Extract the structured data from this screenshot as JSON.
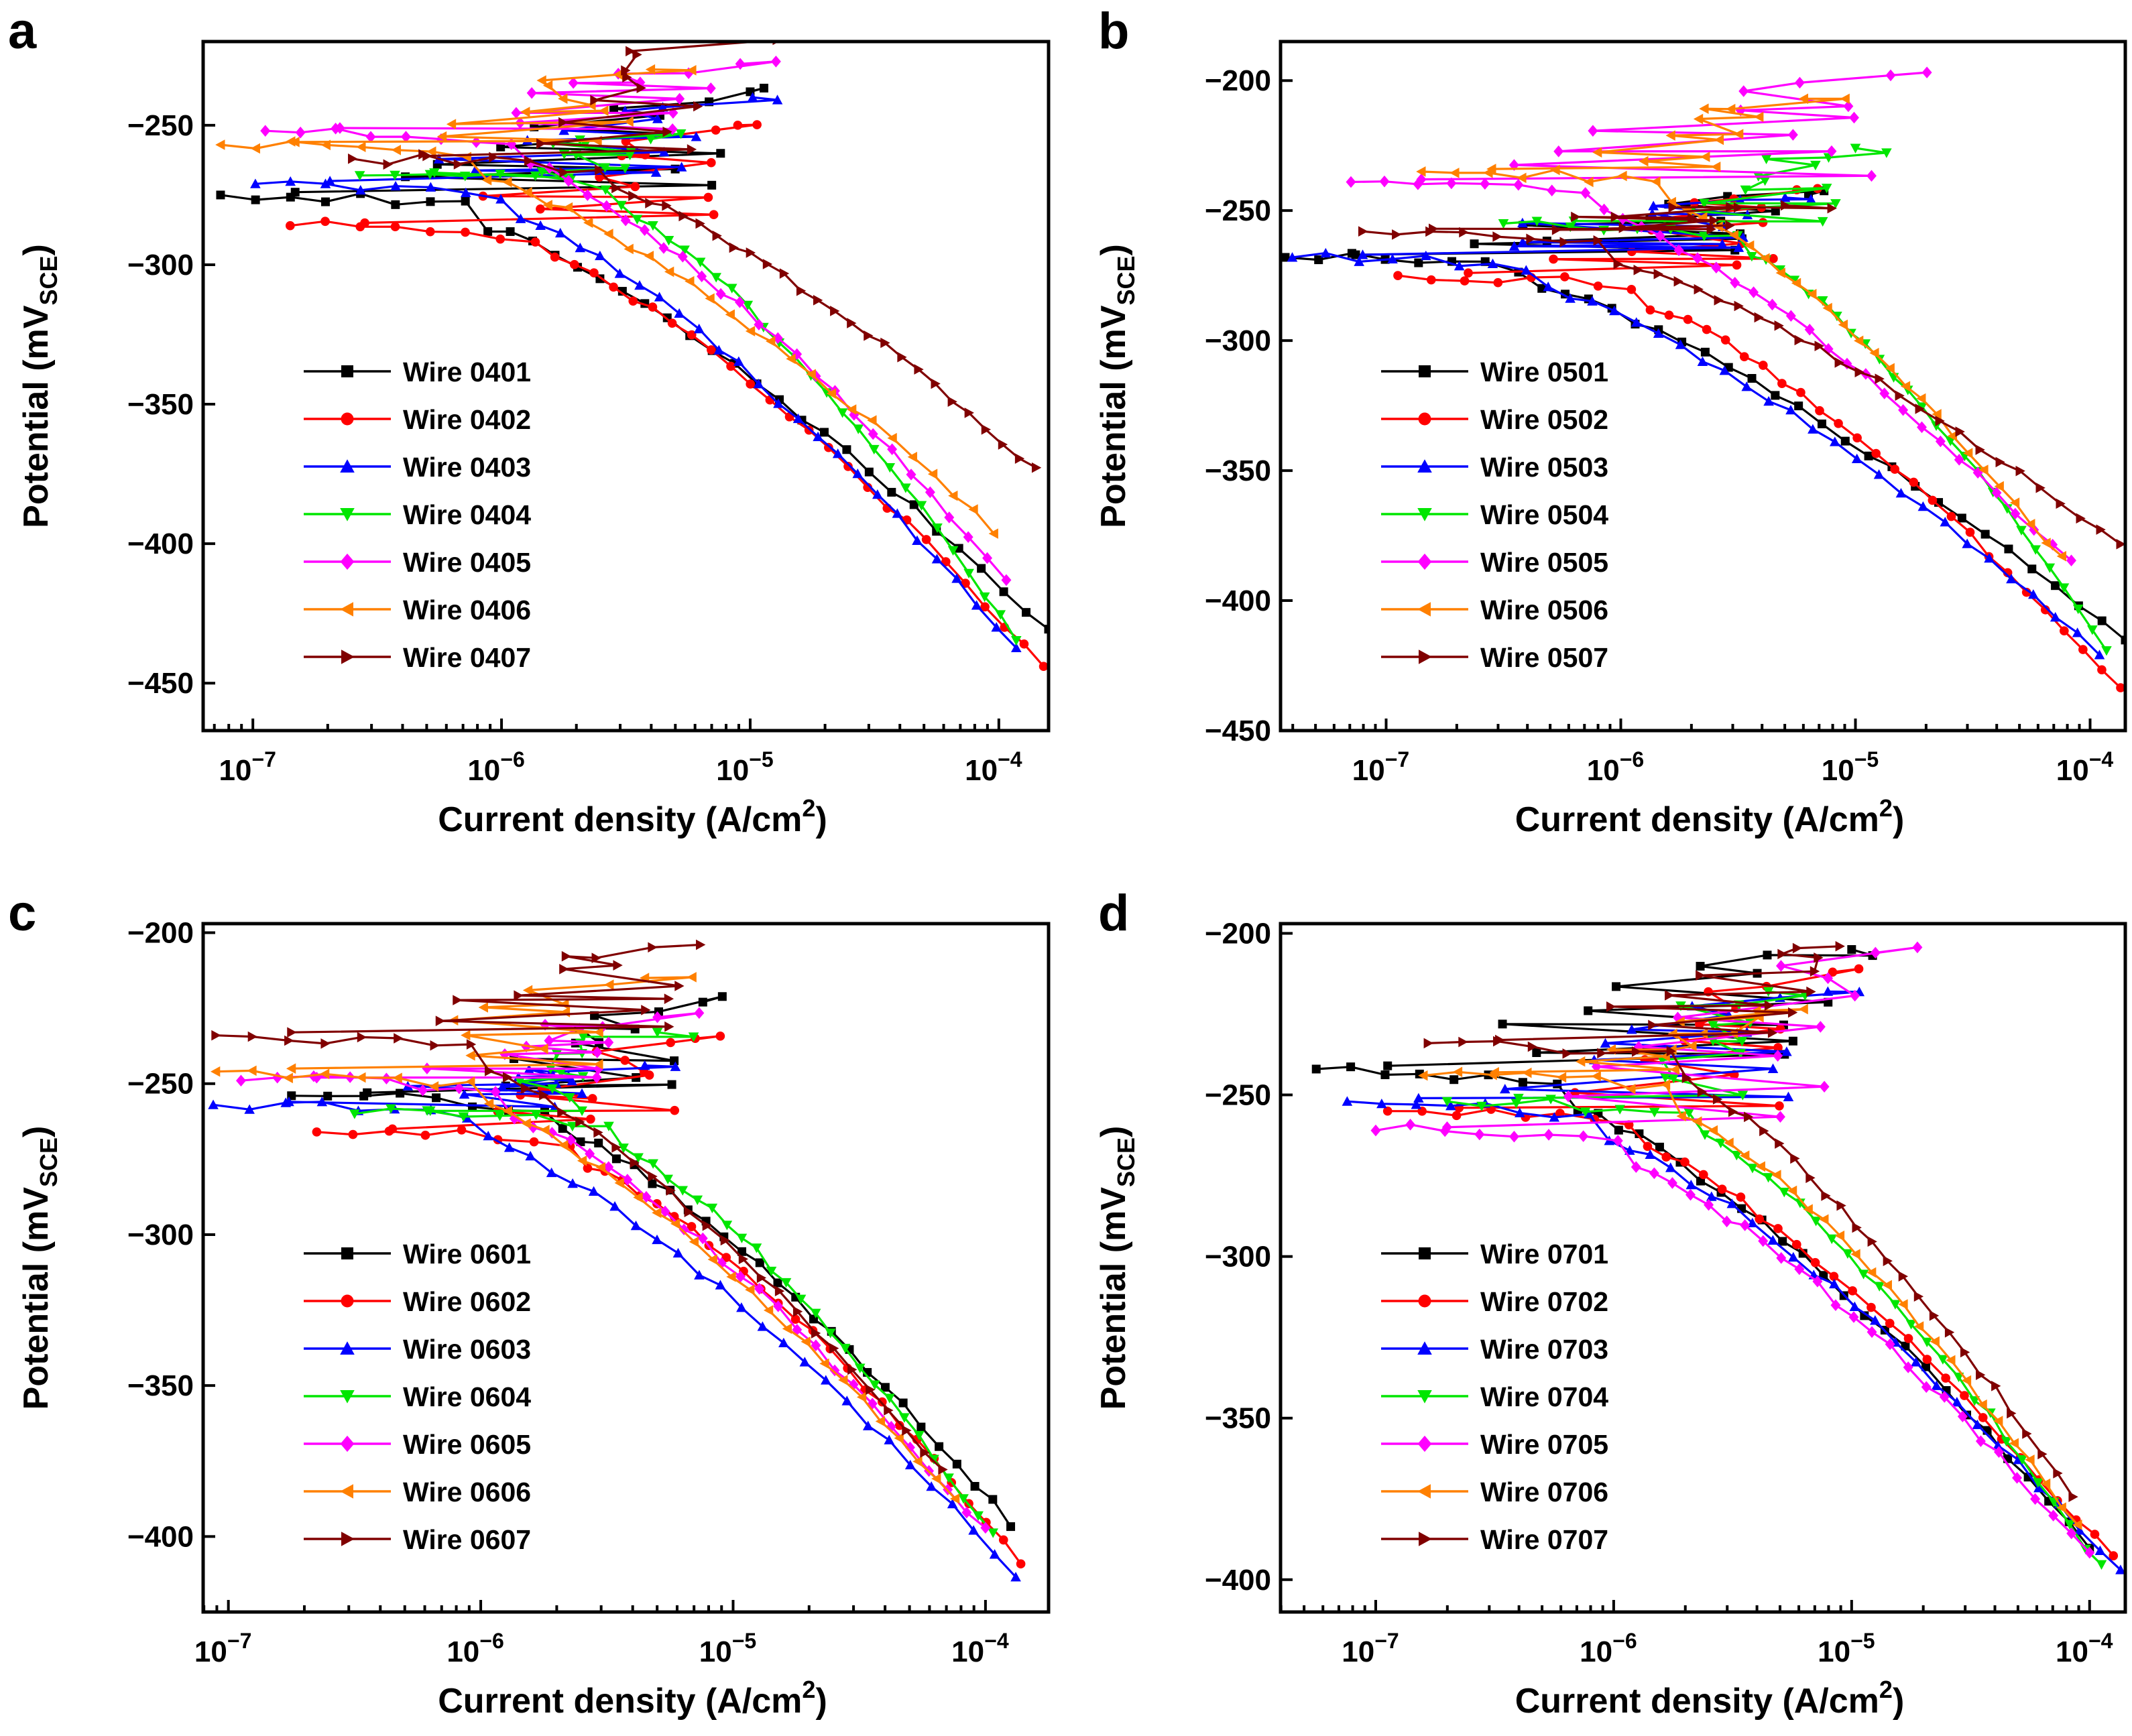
{
  "colors": [
    "#000000",
    "#ff0000",
    "#0000ff",
    "#00e600",
    "#ff00ff",
    "#ff8000",
    "#800000"
  ],
  "markers": [
    "square",
    "circle",
    "triangle-up",
    "triangle-down",
    "diamond",
    "triangle-left",
    "triangle-right"
  ],
  "chart_data": [
    {
      "type": "line",
      "panel": "a",
      "xlabel_main": "Current density (A/cm",
      "xlabel_sup": "2",
      "xlabel_end": ")",
      "ylabel_main": "Potential (mV",
      "ylabel_sub": "SCE",
      "ylabel_end": ")",
      "x_scale": "log",
      "xlim_exp": [
        -7.2,
        -3.8
      ],
      "ylim": [
        -467,
        -220
      ],
      "y_ticks": [
        -250,
        -300,
        -350,
        -400,
        -450
      ],
      "x_ticks": [
        {
          "base": "10",
          "exp": "-7",
          "v": -7
        },
        {
          "base": "10",
          "exp": "-6",
          "v": -6
        },
        {
          "base": "10",
          "exp": "-5",
          "v": -5
        },
        {
          "base": "10",
          "exp": "-4",
          "v": -4
        }
      ],
      "series": [
        {
          "name": "Wire 0401",
          "ecorr": -275,
          "lo": -7.13,
          "top": -238,
          "ttop": -5.0,
          "bot": -431,
          "tbot": -3.8
        },
        {
          "name": "Wire 0402",
          "ecorr": -286,
          "lo": -6.85,
          "top": -250,
          "ttop": -5.05,
          "bot": -444,
          "tbot": -3.82
        },
        {
          "name": "Wire 0403",
          "ecorr": -271,
          "lo": -6.99,
          "top": -240,
          "ttop": -4.99,
          "bot": -437,
          "tbot": -3.93
        },
        {
          "name": "Wire 0404",
          "ecorr": -268,
          "lo": -6.57,
          "top": -255,
          "ttop": -5.4,
          "bot": -434,
          "tbot": -3.93
        },
        {
          "name": "Wire 0405",
          "ecorr": -252,
          "lo": -6.95,
          "top": -228,
          "ttop": -5.04,
          "bot": -412,
          "tbot": -3.97
        },
        {
          "name": "Wire 0406",
          "ecorr": -257,
          "lo": -7.13,
          "top": -230,
          "ttop": -5.4,
          "bot": -395,
          "tbot": -4.02
        },
        {
          "name": "Wire 0407",
          "ecorr": -262,
          "lo": -6.6,
          "top": -218,
          "ttop": -5.08,
          "bot": -374,
          "tbot": -3.85
        }
      ]
    },
    {
      "type": "line",
      "panel": "b",
      "xlabel_main": "Current density (A/cm",
      "xlabel_sup": "2",
      "xlabel_end": ")",
      "ylabel_main": "Potential (mV",
      "ylabel_sub": "SCE",
      "ylabel_end": ")",
      "x_scale": "log",
      "xlim_exp": [
        -7.45,
        -3.85
      ],
      "ylim": [
        -450,
        -185
      ],
      "y_ticks": [
        -200,
        -250,
        -300,
        -350,
        -400,
        -450
      ],
      "x_ticks": [
        {
          "base": "10",
          "exp": "-7",
          "v": -7
        },
        {
          "base": "10",
          "exp": "-6",
          "v": -6
        },
        {
          "base": "10",
          "exp": "-5",
          "v": -5
        },
        {
          "base": "10",
          "exp": "-4",
          "v": -4
        }
      ],
      "series": [
        {
          "name": "Wire 0501",
          "ecorr": -268,
          "lo": -7.43,
          "top": -244,
          "ttop": -5.2,
          "bot": -415,
          "tbot": -3.85
        },
        {
          "name": "Wire 0502",
          "ecorr": -275,
          "lo": -6.95,
          "top": -242,
          "ttop": -5.25,
          "bot": -433,
          "tbot": -3.87
        },
        {
          "name": "Wire 0503",
          "ecorr": -268,
          "lo": -7.4,
          "top": -245,
          "ttop": -5.3,
          "bot": -420,
          "tbot": -3.96
        },
        {
          "name": "Wire 0504",
          "ecorr": -255,
          "lo": -6.5,
          "top": -226,
          "ttop": -5.0,
          "bot": -418,
          "tbot": -3.93
        },
        {
          "name": "Wire 0505",
          "ecorr": -239,
          "lo": -7.15,
          "top": -198,
          "ttop": -4.85,
          "bot": -386,
          "tbot": -4.08
        },
        {
          "name": "Wire 0506",
          "ecorr": -235,
          "lo": -6.85,
          "top": -207,
          "ttop": -5.22,
          "bot": -384,
          "tbot": -4.12
        },
        {
          "name": "Wire 0507",
          "ecorr": -258,
          "lo": -7.1,
          "top": -248,
          "ttop": -5.3,
          "bot": -379,
          "tbot": -3.87
        }
      ]
    },
    {
      "type": "line",
      "panel": "c",
      "xlabel_main": "Current density (A/cm",
      "xlabel_sup": "2",
      "xlabel_end": ")",
      "ylabel_main": "Potential (mV",
      "ylabel_sub": "SCE",
      "ylabel_end": ")",
      "x_scale": "log",
      "xlim_exp": [
        -7.1,
        -3.75
      ],
      "ylim": [
        -425,
        -197
      ],
      "y_ticks": [
        -200,
        -250,
        -300,
        -350,
        -400
      ],
      "x_ticks": [
        {
          "base": "10",
          "exp": "-7",
          "v": -7
        },
        {
          "base": "10",
          "exp": "-6",
          "v": -6
        },
        {
          "base": "10",
          "exp": "-5",
          "v": -5
        },
        {
          "base": "10",
          "exp": "-4",
          "v": -4
        }
      ],
      "series": [
        {
          "name": "Wire 0601",
          "ecorr": -254,
          "lo": -6.75,
          "top": -223,
          "ttop": -5.12,
          "bot": -396,
          "tbot": -3.9
        },
        {
          "name": "Wire 0602",
          "ecorr": -266,
          "lo": -6.65,
          "top": -235,
          "ttop": -5.15,
          "bot": -408,
          "tbot": -3.86
        },
        {
          "name": "Wire 0603",
          "ecorr": -257,
          "lo": -7.06,
          "top": -244,
          "ttop": -5.35,
          "bot": -412,
          "tbot": -3.88
        },
        {
          "name": "Wire 0604",
          "ecorr": -260,
          "lo": -6.5,
          "top": -233,
          "ttop": -5.3,
          "bot": -400,
          "tbot": -3.97
        },
        {
          "name": "Wire 0605",
          "ecorr": -249,
          "lo": -6.95,
          "top": -228,
          "ttop": -5.3,
          "bot": -398,
          "tbot": -4.0
        },
        {
          "name": "Wire 0606",
          "ecorr": -246,
          "lo": -7.05,
          "top": -215,
          "ttop": -5.35,
          "bot": -388,
          "tbot": -4.12
        },
        {
          "name": "Wire 0607",
          "ecorr": -234,
          "lo": -7.05,
          "top": -204,
          "ttop": -5.13,
          "bot": -378,
          "tbot": -4.17
        }
      ]
    },
    {
      "type": "line",
      "panel": "d",
      "xlabel_main": "Current density (A/cm",
      "xlabel_sup": "2",
      "xlabel_end": ")",
      "ylabel_main": "Potential (mV",
      "ylabel_sub": "SCE",
      "ylabel_end": ")",
      "x_scale": "log",
      "xlim_exp": [
        -7.4,
        -3.85
      ],
      "ylim": [
        -410,
        -197
      ],
      "y_ticks": [
        -200,
        -250,
        -300,
        -350,
        -400
      ],
      "x_ticks": [
        {
          "base": "10",
          "exp": "-7",
          "v": -7
        },
        {
          "base": "10",
          "exp": "-6",
          "v": -6
        },
        {
          "base": "10",
          "exp": "-5",
          "v": -5
        },
        {
          "base": "10",
          "exp": "-4",
          "v": -4
        }
      ],
      "series": [
        {
          "name": "Wire 0701",
          "ecorr": -242,
          "lo": -7.25,
          "top": -205,
          "ttop": -5.0,
          "bot": -389,
          "tbot": -4.0
        },
        {
          "name": "Wire 0702",
          "ecorr": -255,
          "lo": -6.95,
          "top": -212,
          "ttop": -5.08,
          "bot": -394,
          "tbot": -3.9
        },
        {
          "name": "Wire 0703",
          "ecorr": -252,
          "lo": -7.12,
          "top": -218,
          "ttop": -5.1,
          "bot": -398,
          "tbot": -3.87
        },
        {
          "name": "Wire 0704",
          "ecorr": -252,
          "lo": -6.7,
          "top": -218,
          "ttop": -5.35,
          "bot": -396,
          "tbot": -3.95
        },
        {
          "name": "Wire 0705",
          "ecorr": -261,
          "lo": -7.0,
          "top": -206,
          "ttop": -4.9,
          "bot": -392,
          "tbot": -4.0
        },
        {
          "name": "Wire 0706",
          "ecorr": -244,
          "lo": -6.8,
          "top": -224,
          "ttop": -5.4,
          "bot": -383,
          "tbot": -4.05
        },
        {
          "name": "Wire 0707",
          "ecorr": -234,
          "lo": -6.78,
          "top": -204,
          "ttop": -5.05,
          "bot": -374,
          "tbot": -4.07
        }
      ]
    }
  ]
}
